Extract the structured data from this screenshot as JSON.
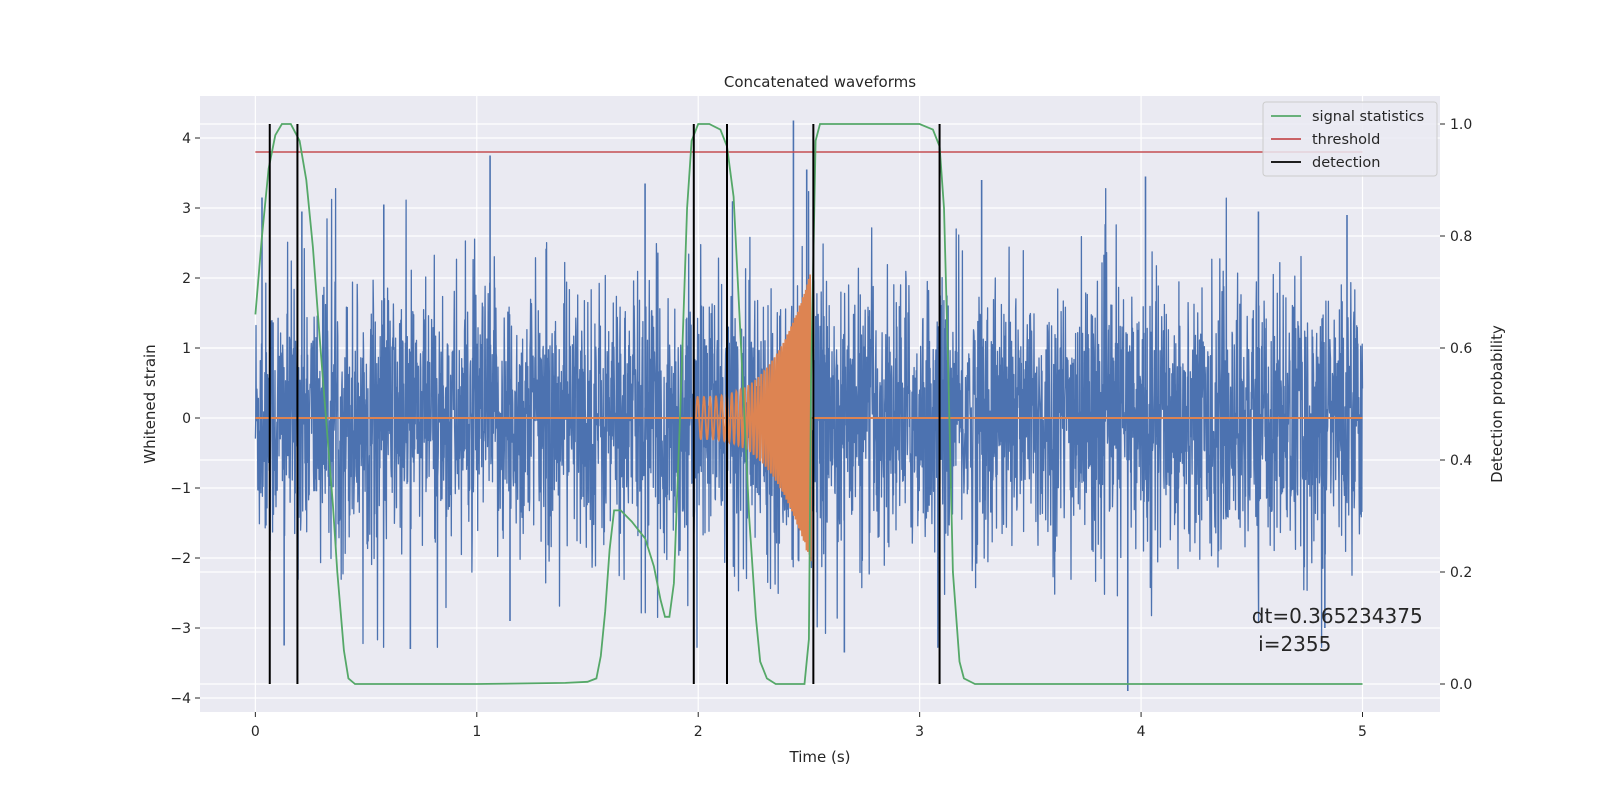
{
  "chart_data": {
    "type": "line",
    "title": "Concatenated waveforms",
    "xlabel": "Time (s)",
    "ylabel": "Whitened strain",
    "y2label": "Detection probability",
    "xlim": [
      -0.25,
      5.35
    ],
    "ylim": [
      -4.2,
      4.6
    ],
    "y2lim": [
      -0.05,
      1.05
    ],
    "xticks": [
      0,
      1,
      2,
      3,
      4,
      5
    ],
    "yticks": [
      -4,
      -3,
      -2,
      -1,
      0,
      1,
      2,
      3,
      4
    ],
    "y2ticks": [
      0.0,
      0.2,
      0.4,
      0.6,
      0.8,
      1.0
    ],
    "xtick_labels": [
      "0",
      "1",
      "2",
      "3",
      "4",
      "5"
    ],
    "ytick_labels": [
      "−4",
      "−3",
      "−2",
      "−1",
      "0",
      "1",
      "2",
      "3",
      "4"
    ],
    "y2tick_labels": [
      "0.0",
      "0.2",
      "0.4",
      "0.6",
      "0.8",
      "1.0"
    ],
    "grid": true,
    "legend_position": "top-right",
    "background": "#eaeaf2",
    "strain": {
      "color": "#4c72b0",
      "x_range": [
        0,
        5
      ],
      "amplitude_typical": 1.0,
      "amplitude_peak": 4.2,
      "spikes": [
        {
          "x": 0.03,
          "y": 3.15
        },
        {
          "x": 0.13,
          "y": -3.25
        },
        {
          "x": 0.21,
          "y": 2.95
        },
        {
          "x": 0.58,
          "y": 3.05
        },
        {
          "x": 0.7,
          "y": -3.3
        },
        {
          "x": 1.06,
          "y": 3.75
        },
        {
          "x": 1.15,
          "y": -2.9
        },
        {
          "x": 1.76,
          "y": 3.35
        },
        {
          "x": 2.43,
          "y": 4.25
        },
        {
          "x": 2.49,
          "y": 3.55
        },
        {
          "x": 2.66,
          "y": -3.35
        },
        {
          "x": 3.28,
          "y": 3.4
        },
        {
          "x": 3.94,
          "y": -3.9
        },
        {
          "x": 4.02,
          "y": 3.45
        },
        {
          "x": 4.53,
          "y": 2.95
        },
        {
          "x": 4.83,
          "y": -3.0
        },
        {
          "x": 4.93,
          "y": 2.9
        }
      ]
    },
    "injected_signal": {
      "color": "#dd8452",
      "t_start": 1.99,
      "t_end": 2.51,
      "amp_start": 0.3,
      "amp_end": 2.1
    },
    "series": [
      {
        "name": "signal statistics",
        "color": "#55a868",
        "axis": "right",
        "x": [
          0.0,
          0.03,
          0.06,
          0.09,
          0.12,
          0.16,
          0.2,
          0.23,
          0.26,
          0.29,
          0.32,
          0.35,
          0.37,
          0.4,
          0.42,
          0.45,
          0.5,
          1.0,
          1.4,
          1.5,
          1.54,
          1.56,
          1.58,
          1.6,
          1.62,
          1.65,
          1.7,
          1.76,
          1.8,
          1.83,
          1.85,
          1.87,
          1.89,
          1.92,
          1.95,
          1.97,
          2.0,
          2.05,
          2.1,
          2.13,
          2.16,
          2.2,
          2.23,
          2.26,
          2.28,
          2.31,
          2.35,
          2.4,
          2.45,
          2.48,
          2.5,
          2.51,
          2.53,
          2.55,
          2.6,
          3.0,
          3.06,
          3.09,
          3.11,
          3.13,
          3.15,
          3.18,
          3.2,
          3.25,
          4.0,
          5.0
        ],
        "values": [
          0.66,
          0.8,
          0.92,
          0.98,
          1.0,
          1.0,
          0.97,
          0.9,
          0.78,
          0.62,
          0.47,
          0.32,
          0.2,
          0.06,
          0.01,
          0.0,
          0.0,
          0.0,
          0.002,
          0.004,
          0.01,
          0.05,
          0.13,
          0.24,
          0.31,
          0.31,
          0.29,
          0.26,
          0.21,
          0.15,
          0.12,
          0.12,
          0.18,
          0.5,
          0.85,
          0.97,
          1.0,
          1.0,
          0.99,
          0.96,
          0.87,
          0.55,
          0.3,
          0.12,
          0.04,
          0.01,
          0.0,
          0.0,
          0.0,
          0.0,
          0.08,
          0.55,
          0.97,
          1.0,
          1.0,
          1.0,
          0.99,
          0.96,
          0.85,
          0.55,
          0.2,
          0.04,
          0.01,
          0.0,
          0.0,
          0.0
        ]
      },
      {
        "name": "threshold",
        "color": "#c44e52",
        "axis": "right",
        "value": 0.95,
        "x": [
          0.0,
          5.0
        ]
      },
      {
        "name": "detection",
        "color": "#000000",
        "type": "vlines",
        "axis": "right",
        "x": [
          0.065,
          0.19,
          1.98,
          2.13,
          2.52,
          3.09
        ],
        "ymin": 0.0,
        "ymax": 1.0
      }
    ],
    "annotations": [
      {
        "text_line1": "dt=0.365234375",
        "text_line2": " i=2355",
        "x": 4.5,
        "y": -3.0
      }
    ]
  }
}
